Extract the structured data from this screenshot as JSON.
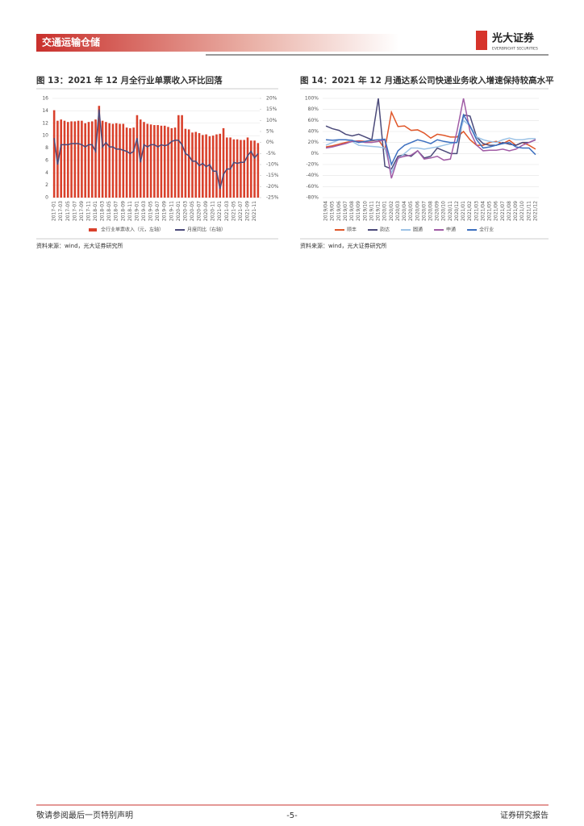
{
  "header": {
    "section": "交通运输仓储",
    "brand": "光大证券",
    "brand_en": "EVERBRIGHT SECURITIES"
  },
  "figures": [
    {
      "title": "图 13：2021 年 12 月全行业单票收入环比回落",
      "source": "资料来源：wind，光大证券研究所"
    },
    {
      "title": "图 14：2021 年 12 月通达系公司快递业务收入增速保持较高水平",
      "source": "资料来源：wind，光大证券研究所"
    }
  ],
  "chart_data": [
    {
      "type": "bar",
      "categories": [
        "2017-01",
        null,
        "2017-03",
        null,
        "2017-05",
        null,
        "2017-07",
        null,
        "2017-09",
        null,
        "2017-11",
        null,
        "2018-01",
        null,
        "2018-03",
        null,
        "2018-05",
        null,
        "2018-07",
        null,
        "2018-09",
        null,
        "2018-11",
        null,
        "2019-01",
        null,
        "2019-03",
        null,
        "2019-05",
        null,
        "2019-07",
        null,
        "2019-09",
        null,
        "2019-11",
        null,
        "2020-01",
        null,
        "2020-03",
        null,
        "2020-05",
        null,
        "2020-07",
        null,
        "2020-09",
        null,
        "2020-11",
        null,
        "2021-01",
        null,
        "2021-03",
        null,
        "2021-05",
        null,
        "2021-07",
        null,
        "2021-09",
        null,
        "2021-11",
        null
      ],
      "series": [
        {
          "name": "全行业单票收入（元，左轴）",
          "type": "bar",
          "color": "#d9402b",
          "values": [
            14.1,
            12.4,
            12.6,
            12.4,
            12.2,
            12.3,
            12.3,
            12.4,
            12.4,
            12.0,
            12.2,
            12.3,
            12.6,
            14.8,
            12.4,
            12.2,
            12.0,
            11.9,
            12.0,
            11.9,
            11.9,
            11.3,
            11.2,
            11.3,
            13.3,
            12.6,
            12.2,
            11.9,
            11.8,
            11.7,
            11.7,
            11.6,
            11.6,
            11.4,
            11.2,
            11.3,
            13.3,
            13.3,
            11.1,
            11.0,
            10.5,
            10.6,
            10.4,
            10.1,
            10.2,
            9.9,
            10.0,
            10.2,
            10.3,
            11.2,
            9.7,
            9.7,
            9.4,
            9.4,
            9.3,
            9.3,
            9.7,
            9.2,
            9.2,
            8.8
          ]
        },
        {
          "name": "月度同比（右轴）",
          "type": "line",
          "axis": "y2",
          "color": "#4b4a7a",
          "values": [
            2,
            -10,
            -1,
            -1,
            -1,
            -0.5,
            -0.5,
            -0.5,
            -1,
            -2,
            -1,
            -1,
            -4,
            15,
            -2,
            0,
            -2,
            -2,
            -3,
            -3,
            -3.5,
            -4,
            -5,
            -4,
            2,
            -9,
            -1,
            -2,
            -1,
            -1,
            -2,
            -1,
            -1.5,
            -1,
            0.5,
            1,
            1,
            -1,
            -5,
            -6,
            -8.5,
            -8.5,
            -10.5,
            -9.5,
            -11,
            -10,
            -13,
            -13,
            -21,
            -14.5,
            -12,
            -12,
            -9,
            -9.5,
            -9,
            -9,
            -6,
            -4,
            -7,
            -5
          ]
        }
      ],
      "ylim": [
        0,
        16
      ],
      "yticks": [
        0,
        2,
        4,
        6,
        8,
        10,
        12,
        14,
        16
      ],
      "y2lim": [
        -25,
        20
      ],
      "y2ticks": [
        {
          "value": -25,
          "label": "-25%"
        },
        {
          "value": -20,
          "label": "-20%"
        },
        {
          "value": -15,
          "label": "-15%"
        },
        {
          "value": -10,
          "label": "-10%"
        },
        {
          "value": -5,
          "label": "-5%"
        },
        {
          "value": 0,
          "label": "0%"
        },
        {
          "value": 5,
          "label": "5%"
        },
        {
          "value": 10,
          "label": "10%"
        },
        {
          "value": 15,
          "label": "15%"
        },
        {
          "value": 20,
          "label": "20%"
        }
      ],
      "grid": true
    },
    {
      "type": "line",
      "categories": [
        "2019/04",
        "2019/05",
        "2019/06",
        "2019/07",
        "2019/08",
        "2019/09",
        "2019/10",
        "2019/11",
        "2019/12",
        "2020/01",
        "2020/02",
        "2020/03",
        "2020/04",
        "2020/05",
        "2020/06",
        "2020/07",
        "2020/08",
        "2020/09",
        "2020/10",
        "2020/11",
        "2020/12",
        "2021/01",
        "2021/02",
        "2021/03",
        "2021/04",
        "2021/05",
        "2021/06",
        "2021/07",
        "2021/08",
        "2021/09",
        "2021/10",
        "2021/11",
        "2021/12"
      ],
      "series": [
        {
          "name": "顺丰",
          "color": "#e0572a",
          "values": [
            12,
            14,
            17,
            20,
            22,
            23,
            22,
            23,
            25,
            8,
            75,
            49,
            50,
            42,
            43,
            37,
            28,
            35,
            33,
            30,
            30,
            40,
            25,
            15,
            15,
            20,
            22,
            18,
            24,
            15,
            20,
            15,
            8
          ]
        },
        {
          "name": "韵达",
          "color": "#4b4a7a",
          "values": [
            50,
            45,
            42,
            35,
            32,
            35,
            30,
            25,
            100,
            -23,
            -28,
            -5,
            -2,
            -5,
            5,
            -8,
            -5,
            10,
            5,
            0,
            0,
            70,
            68,
            30,
            18,
            15,
            15,
            20,
            17,
            15,
            20,
            20,
            25
          ]
        },
        {
          "name": "圆通",
          "color": "#9dc3e6",
          "values": [
            15,
            20,
            25,
            25,
            22,
            15,
            14,
            13,
            12,
            10,
            -35,
            -10,
            0,
            10,
            10,
            8,
            10,
            12,
            15,
            18,
            20,
            60,
            50,
            30,
            25,
            22,
            20,
            25,
            28,
            25,
            25,
            27,
            27
          ]
        },
        {
          "name": "申通",
          "color": "#a05ca5",
          "values": [
            10,
            12,
            15,
            18,
            22,
            22,
            20,
            20,
            22,
            25,
            -45,
            -8,
            -5,
            -3,
            5,
            -10,
            -8,
            -5,
            -12,
            -10,
            40,
            100,
            40,
            15,
            5,
            6,
            6,
            8,
            5,
            8,
            15,
            20,
            25
          ]
        },
        {
          "name": "全行业",
          "color": "#3c6fbf",
          "values": [
            25,
            24,
            25,
            25,
            24,
            20,
            22,
            24,
            25,
            26,
            -20,
            5,
            15,
            20,
            25,
            22,
            18,
            25,
            22,
            20,
            20,
            70,
            50,
            25,
            10,
            12,
            15,
            18,
            20,
            12,
            10,
            10,
            -2
          ]
        }
      ],
      "ylim": [
        -80,
        100
      ],
      "yticks": [
        {
          "value": -80,
          "label": "-80%"
        },
        {
          "value": -60,
          "label": "-60%"
        },
        {
          "value": -40,
          "label": "-40%"
        },
        {
          "value": -20,
          "label": "-20%"
        },
        {
          "value": 0,
          "label": "0%"
        },
        {
          "value": 20,
          "label": "20%"
        },
        {
          "value": 40,
          "label": "40%"
        },
        {
          "value": 60,
          "label": "60%"
        },
        {
          "value": 80,
          "label": "80%"
        },
        {
          "value": 100,
          "label": "100%"
        }
      ],
      "grid": true
    }
  ],
  "footer": {
    "left": "敬请参阅最后一页特别声明",
    "center": "-5-",
    "right": "证券研究报告"
  }
}
